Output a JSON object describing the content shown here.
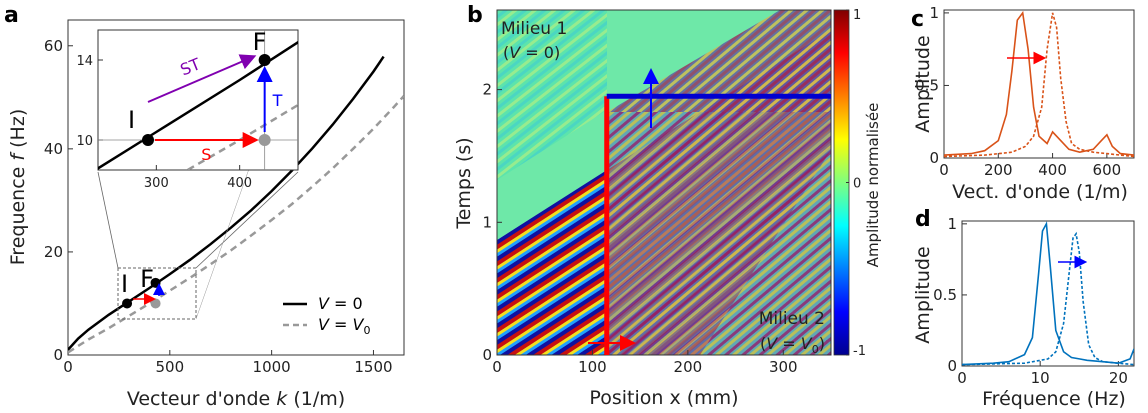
{
  "chart_data": [
    {
      "panel": "a",
      "type": "line",
      "xlabel": "Vecteur d'onde k (1/m)",
      "ylabel": "Frequence f (Hz)",
      "xlim": [
        0,
        1650
      ],
      "ylim": [
        0,
        65
      ],
      "xticks": [
        0,
        500,
        1000,
        1500
      ],
      "yticks": [
        0,
        20,
        40,
        60
      ],
      "series": [
        {
          "name": "V = 0",
          "style": "solid",
          "color": "#000000",
          "x": [
            0,
            50,
            100,
            200,
            300,
            400,
            500,
            600,
            700,
            800,
            900,
            1000,
            1100,
            1200,
            1300,
            1400,
            1500,
            1550
          ],
          "y": [
            1,
            3.2,
            4.9,
            7.8,
            10.4,
            13.0,
            15.7,
            18.5,
            21.5,
            24.7,
            28.1,
            31.8,
            35.8,
            40.1,
            44.7,
            49.7,
            55.0,
            57.9
          ]
        },
        {
          "name": "V = V₀",
          "style": "dashed",
          "color": "#999999",
          "x": [
            0,
            100,
            200,
            300,
            400,
            500,
            600,
            700,
            800,
            900,
            1000,
            1100,
            1200,
            1300,
            1400,
            1500,
            1600,
            1650
          ],
          "y": [
            0.5,
            3.0,
            5.2,
            7.6,
            10.0,
            12.5,
            15.0,
            17.6,
            20.3,
            23.2,
            26.2,
            29.3,
            32.7,
            36.2,
            40.0,
            43.9,
            48.1,
            50.3
          ]
        }
      ],
      "points": [
        {
          "label": "I",
          "x": 290,
          "y": 10,
          "color": "#000000"
        },
        {
          "label": "F",
          "x": 430,
          "y": 14,
          "color": "#000000"
        },
        {
          "label": "",
          "x": 430,
          "y": 10,
          "color": "#999999"
        }
      ],
      "legend_position": "bottom-right",
      "inset": {
        "xlim": [
          230,
          470
        ],
        "ylim": [
          8.5,
          15.5
        ],
        "xticks": [
          300,
          400
        ],
        "yticks": [
          10,
          14
        ],
        "arrows": [
          {
            "label": "S",
            "color": "#ff0000"
          },
          {
            "label": "ST",
            "color": "#8000b0"
          },
          {
            "label": "T",
            "color": "#0000ff"
          }
        ]
      }
    },
    {
      "panel": "b",
      "type": "heatmap",
      "xlabel": "Position x (mm)",
      "ylabel": "Temps (s)",
      "xlim": [
        0,
        350
      ],
      "ylim": [
        0,
        2.6
      ],
      "xticks": [
        0,
        100,
        200,
        300
      ],
      "yticks": [
        0,
        1,
        2
      ],
      "colorbar": {
        "label": "Amplitude normalisée",
        "range": [
          -1,
          1
        ],
        "ticks": [
          -1,
          0,
          1
        ]
      },
      "boundary_x": 115,
      "switch_time": 1.95,
      "annotations": [
        "Milieu 1",
        "(V = 0)",
        "Milieu 2",
        "(V = V₀)"
      ]
    },
    {
      "panel": "c",
      "type": "line",
      "xlabel": "Vect. d'onde (1/m)",
      "ylabel": "Amplitude",
      "xlim": [
        0,
        700
      ],
      "ylim": [
        0,
        1.02
      ],
      "xticks": [
        0,
        200,
        400,
        600
      ],
      "yticks": [
        0,
        0.5,
        1
      ],
      "color": "#d95319",
      "series": [
        {
          "style": "solid",
          "x": [
            0,
            100,
            150,
            200,
            230,
            250,
            270,
            290,
            310,
            330,
            350,
            380,
            400,
            430,
            460,
            500,
            550,
            580,
            600,
            620,
            650,
            700
          ],
          "y": [
            0.02,
            0.03,
            0.05,
            0.12,
            0.3,
            0.6,
            0.95,
            1.0,
            0.75,
            0.35,
            0.15,
            0.1,
            0.18,
            0.12,
            0.06,
            0.04,
            0.06,
            0.12,
            0.16,
            0.08,
            0.03,
            0.02
          ]
        },
        {
          "style": "dashed",
          "x": [
            0,
            150,
            250,
            300,
            330,
            360,
            380,
            400,
            415,
            430,
            450,
            470,
            500,
            550,
            600,
            650,
            700
          ],
          "y": [
            0.01,
            0.02,
            0.04,
            0.08,
            0.15,
            0.35,
            0.75,
            1.0,
            0.9,
            0.55,
            0.25,
            0.1,
            0.06,
            0.04,
            0.03,
            0.02,
            0.01
          ]
        }
      ]
    },
    {
      "panel": "d",
      "type": "line",
      "xlabel": "Fréquence (Hz)",
      "ylabel": "Amplitude",
      "xlim": [
        0,
        22
      ],
      "ylim": [
        0,
        1.02
      ],
      "xticks": [
        0,
        10,
        20
      ],
      "yticks": [
        0,
        0.5,
        1
      ],
      "color": "#0072bd",
      "series": [
        {
          "style": "solid",
          "x": [
            0,
            4,
            6,
            8,
            9,
            9.8,
            10.3,
            10.8,
            11.3,
            12,
            13,
            14,
            15,
            16,
            18,
            20,
            21.5,
            22
          ],
          "y": [
            0.01,
            0.02,
            0.03,
            0.08,
            0.2,
            0.65,
            0.95,
            1.0,
            0.7,
            0.25,
            0.1,
            0.06,
            0.05,
            0.04,
            0.03,
            0.02,
            0.05,
            0.12
          ]
        },
        {
          "style": "dashed",
          "x": [
            0,
            8,
            11,
            12,
            13,
            13.6,
            14.2,
            14.6,
            15.0,
            15.5,
            16.2,
            17,
            18,
            20,
            22
          ],
          "y": [
            0.01,
            0.02,
            0.05,
            0.1,
            0.3,
            0.6,
            0.9,
            0.93,
            0.8,
            0.45,
            0.15,
            0.06,
            0.03,
            0.02,
            0.01
          ]
        }
      ]
    }
  ]
}
